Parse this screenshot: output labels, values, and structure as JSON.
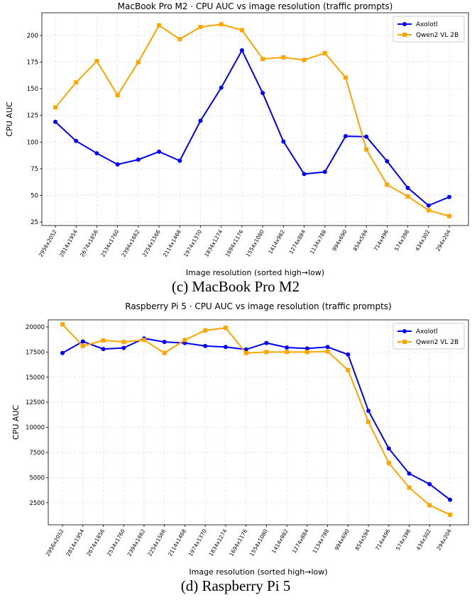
{
  "chart_data": [
    {
      "type": "line",
      "title": "MacBook Pro M2 · CPU AUC vs image resolution (traffic prompts)",
      "caption": "(c) MacBook Pro M2",
      "xlabel": "Image resolution (sorted high→low)",
      "ylabel": "CPU AUC",
      "categories": [
        "2956x2052",
        "2814x1954",
        "2674x1856",
        "2534x1760",
        "2394x1662",
        "2254x1566",
        "2114x1468",
        "1974x1370",
        "1834x1274",
        "1694x1176",
        "1554x1080",
        "1414x982",
        "1274x884",
        "1134x788",
        "994x690",
        "854x594",
        "714x496",
        "574x398",
        "434x302",
        "294x204"
      ],
      "series": [
        {
          "name": "Axolotl",
          "color": "#0000ff",
          "marker": "circle",
          "values": [
            119,
            101,
            89.5,
            79,
            83.5,
            91,
            82.5,
            120,
            151,
            186,
            146,
            100.5,
            70,
            72,
            105.5,
            105,
            82,
            57,
            40.5,
            48.5
          ]
        },
        {
          "name": "Qwen2 VL 2B",
          "color": "#ffa500",
          "marker": "square",
          "values": [
            132.5,
            156,
            176,
            144,
            175,
            209.5,
            196.5,
            208,
            210.5,
            205,
            178,
            179.5,
            177,
            183.5,
            160.5,
            93,
            60,
            49,
            36,
            30.5
          ]
        }
      ],
      "ylim": [
        21.7,
        221.3
      ],
      "yticks": [
        25,
        50,
        75,
        100,
        125,
        150,
        175,
        200
      ],
      "grid": true,
      "legend": "upper right"
    },
    {
      "type": "line",
      "title": "Raspberry Pi 5 · CPU AUC vs image resolution (traffic prompts)",
      "caption": "(d) Raspberry Pi 5",
      "xlabel": "Image resolution (sorted high→low)",
      "ylabel": "CPU AUC",
      "categories": [
        "2956x2052",
        "2814x1954",
        "2674x1856",
        "2534x1760",
        "2394x1662",
        "2254x1566",
        "2114x1468",
        "1974x1370",
        "1834x1274",
        "1694x1176",
        "1554x1080",
        "1414x982",
        "1274x884",
        "1134x788",
        "994x690",
        "854x594",
        "714x496",
        "574x398",
        "434x302",
        "294x204"
      ],
      "series": [
        {
          "name": "Axolotl",
          "color": "#0000ff",
          "marker": "circle",
          "values": [
            17400,
            18550,
            17800,
            17900,
            18850,
            18500,
            18400,
            18100,
            18000,
            17750,
            18400,
            17950,
            17850,
            18000,
            17250,
            11650,
            7900,
            5400,
            4350,
            2800
          ]
        },
        {
          "name": "Qwen2 VL 2B",
          "color": "#ffa500",
          "marker": "square",
          "values": [
            20250,
            18100,
            18650,
            18500,
            18700,
            17400,
            18700,
            19650,
            19900,
            17400,
            17500,
            17500,
            17500,
            17550,
            15700,
            10550,
            6450,
            4000,
            2250,
            1300
          ]
        }
      ],
      "ylim": [
        300,
        20700
      ],
      "yticks": [
        2500,
        5000,
        7500,
        10000,
        12500,
        15000,
        17500,
        20000
      ],
      "grid": true,
      "legend": "upper right"
    }
  ]
}
